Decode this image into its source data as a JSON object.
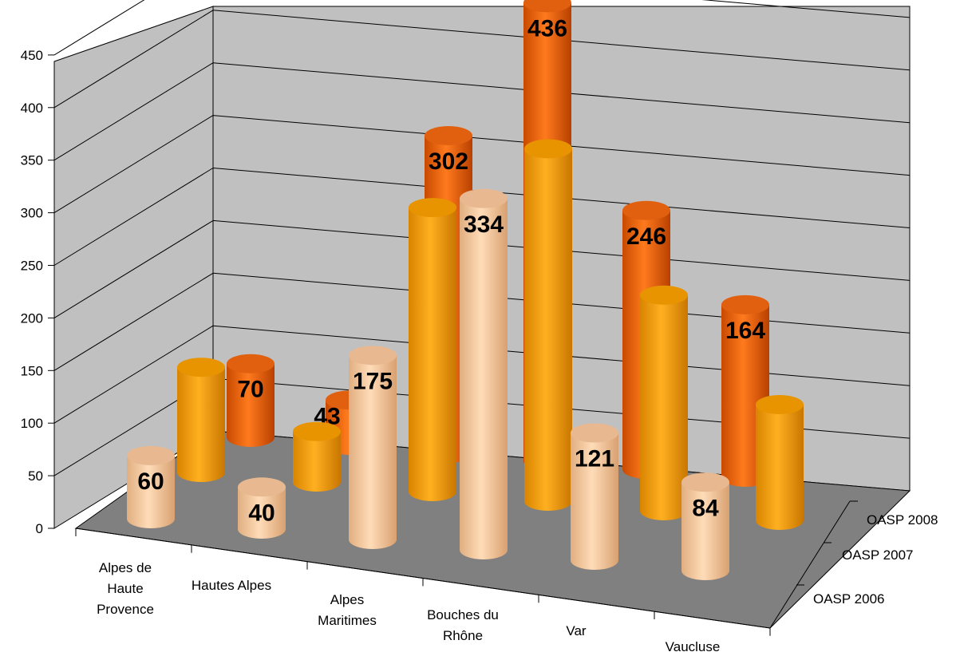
{
  "chart_data": {
    "type": "bar",
    "style": "3d-cylinder",
    "categories": [
      [
        "Alpes de",
        "Haute",
        "Provence"
      ],
      [
        "Hautes Alpes"
      ],
      [
        "Alpes",
        "Maritimes"
      ],
      [
        "Bouches du",
        "Rhône"
      ],
      [
        "Var"
      ],
      [
        "Vaucluse"
      ]
    ],
    "series": [
      {
        "name": "OASP 2008",
        "values": [
          70,
          43,
          302,
          436,
          246,
          164
        ],
        "labels": [
          "70",
          "43",
          "302",
          "436",
          "246",
          "164"
        ],
        "color": "#E86A10"
      },
      {
        "name": "OASP 2007",
        "values": [
          100,
          48,
          270,
          335,
          205,
          110
        ],
        "labels": [
          "",
          "",
          "",
          "",
          "",
          ""
        ],
        "color": "#F5A000"
      },
      {
        "name": "OASP 2006",
        "values": [
          60,
          40,
          175,
          334,
          121,
          84
        ],
        "labels": [
          "60",
          "40",
          "175",
          "334",
          "121",
          "84"
        ],
        "color": "#F5C8A0"
      }
    ],
    "yticks": [
      "0",
      "50",
      "100",
      "150",
      "200",
      "250",
      "300",
      "350",
      "400",
      "450"
    ],
    "ylim": [
      0,
      450
    ],
    "grid": true,
    "legend": "depth axis labels (right)",
    "colors": {
      "wall": "#C0C0C0",
      "floor": "#808080"
    }
  }
}
